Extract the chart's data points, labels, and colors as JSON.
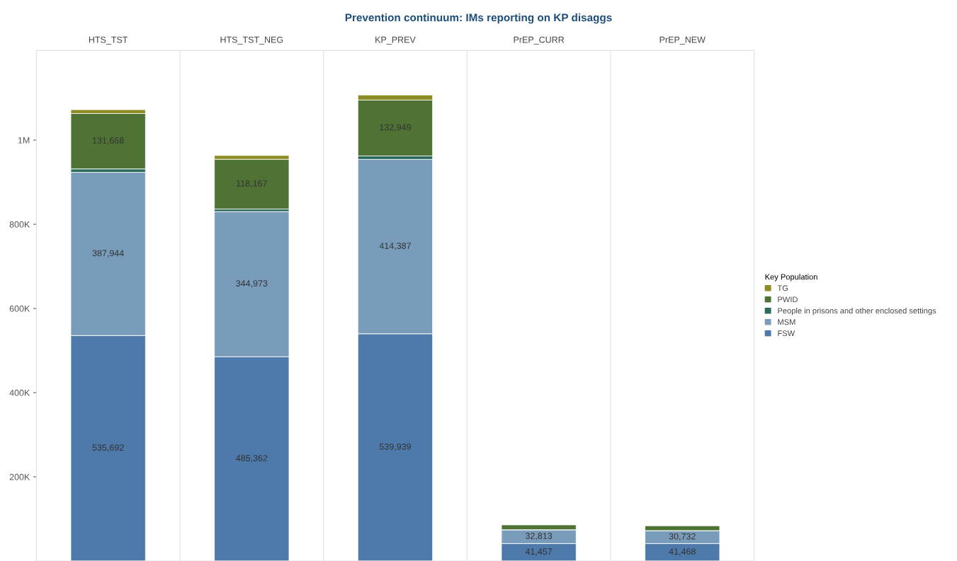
{
  "chart_data": {
    "type": "bar",
    "stacked": true,
    "title": "Prevention continuum: IMs reporting on KP disaggs",
    "categories": [
      "HTS_TST",
      "HTS_TST_NEG",
      "KP_PREV",
      "PrEP_CURR",
      "PrEP_NEW"
    ],
    "legend_title": "Key Population",
    "legend": "right",
    "grid": false,
    "ylim": [
      0,
      1213000
    ],
    "yticks": [
      {
        "value": 200000,
        "label": "200K"
      },
      {
        "value": 400000,
        "label": "400K"
      },
      {
        "value": 600000,
        "label": "600K"
      },
      {
        "value": 800000,
        "label": "800K"
      },
      {
        "value": 1000000,
        "label": "1M"
      }
    ],
    "series": [
      {
        "name": "FSW",
        "color": "#4e7aab",
        "values": [
          535692,
          485362,
          539939,
          41457,
          41468
        ],
        "value_labels": [
          "535,692",
          "485,362",
          "539,939",
          "41,457",
          "41,468"
        ]
      },
      {
        "name": "MSM",
        "color": "#7a9cbb",
        "values": [
          387944,
          344973,
          414387,
          32813,
          30732
        ],
        "value_labels": [
          "387,944",
          "344,973",
          "414,387",
          "32,813",
          "30,732"
        ]
      },
      {
        "name": "People in prisons and other enclosed settings",
        "color": "#2a6b5b",
        "values": [
          8000,
          6000,
          8000,
          null,
          null
        ]
      },
      {
        "name": "PWID",
        "color": "#4f7335",
        "values": [
          131668,
          118167,
          132949,
          12000,
          12000
        ],
        "value_labels": [
          "131,668",
          "118,167",
          "132,949",
          null,
          null
        ]
      },
      {
        "name": "TG",
        "color": "#8c8b24",
        "values": [
          9000,
          9000,
          12000,
          null,
          null
        ]
      }
    ]
  }
}
